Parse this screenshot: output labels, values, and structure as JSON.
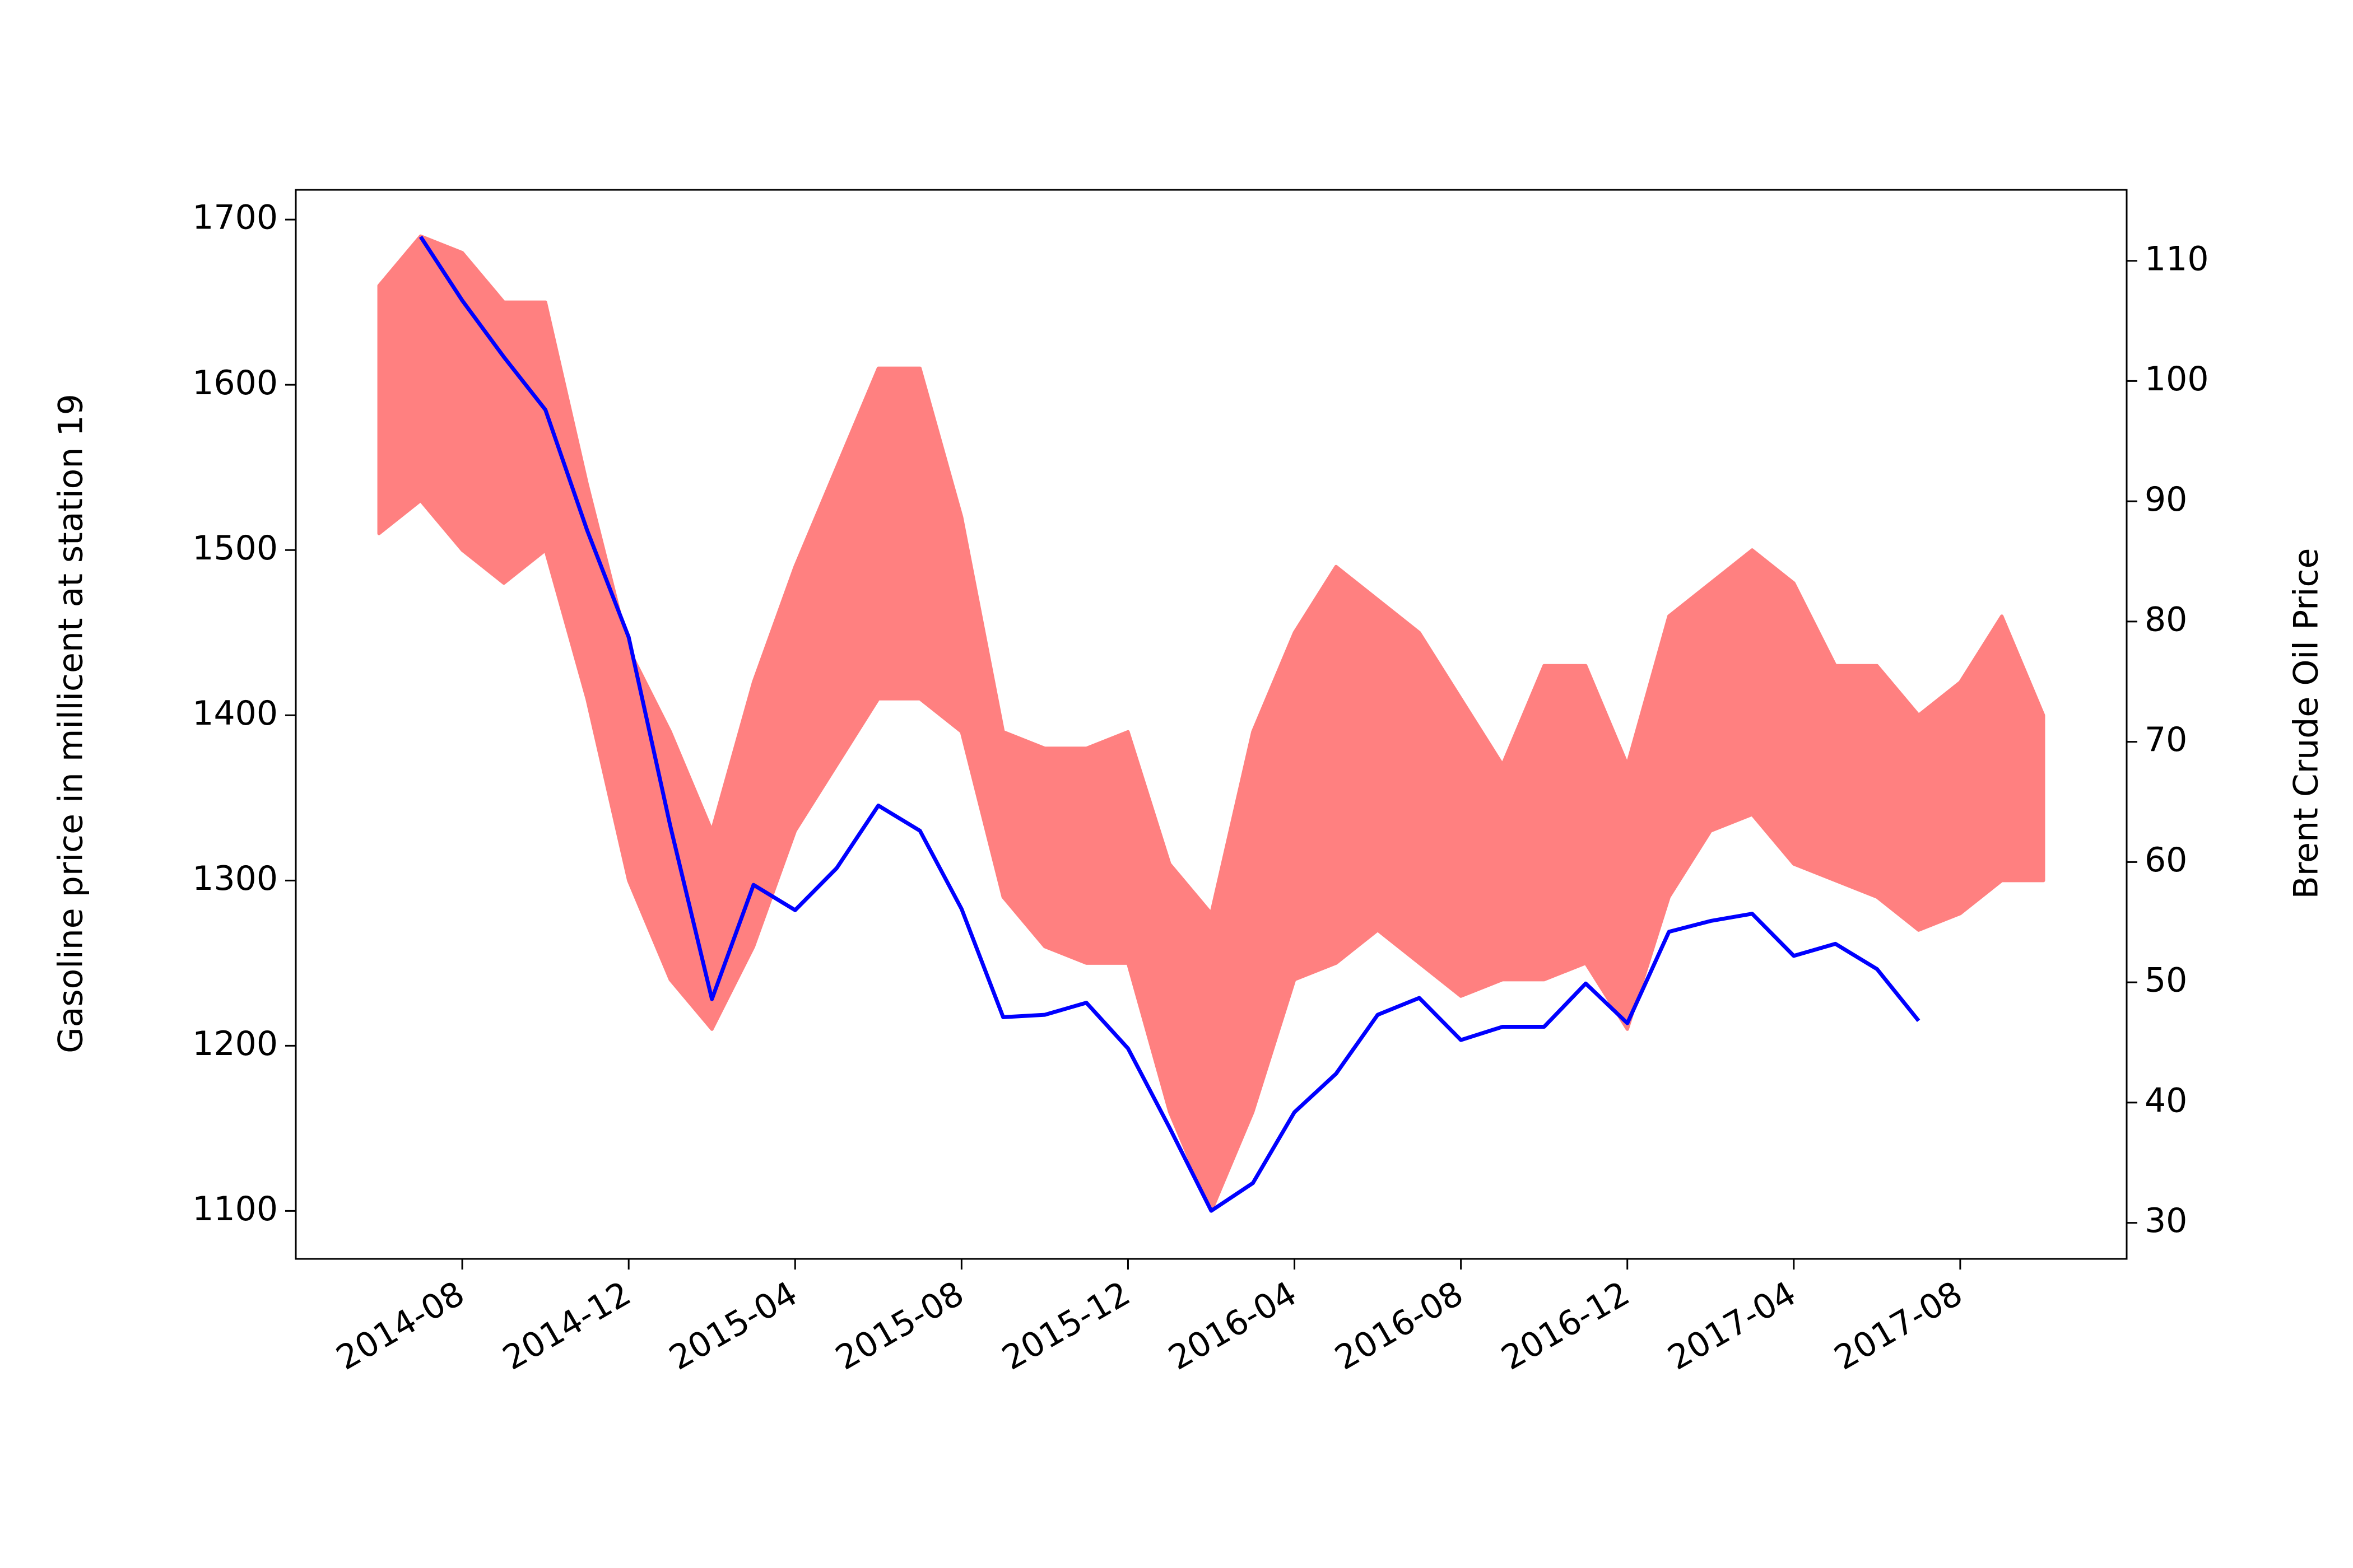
{
  "chart_data": {
    "type": "line",
    "ylabel": "Gasoline price in millicent at station 19",
    "y2label": "Brent Crude Oil Price",
    "xlim": [
      "2014-04",
      "2017-12"
    ],
    "xticks": [
      "2014-08",
      "2014-12",
      "2015-04",
      "2015-08",
      "2015-12",
      "2016-04",
      "2016-08",
      "2016-12",
      "2017-04",
      "2017-08"
    ],
    "ylim": [
      1071,
      1718
    ],
    "yticks": [
      1100,
      1200,
      1300,
      1400,
      1500,
      1600,
      1700
    ],
    "y2lim": [
      27,
      115.9
    ],
    "y2ticks": [
      30,
      40,
      50,
      60,
      70,
      80,
      90,
      100,
      110
    ],
    "series": [
      {
        "color": "#ff8080",
        "style": "range",
        "x": [
          "2014-06",
          "2014-07",
          "2014-08",
          "2014-09",
          "2014-10",
          "2014-11",
          "2014-12",
          "2015-01",
          "2015-02",
          "2015-03",
          "2015-04",
          "2015-05",
          "2015-06",
          "2015-07",
          "2015-08",
          "2015-09",
          "2015-10",
          "2015-11",
          "2015-12",
          "2016-01",
          "2016-02",
          "2016-03",
          "2016-04",
          "2016-05",
          "2016-06",
          "2016-07",
          "2016-08",
          "2016-09",
          "2016-10",
          "2016-11",
          "2016-12",
          "2017-01",
          "2017-02",
          "2017-03",
          "2017-04",
          "2017-05",
          "2017-06",
          "2017-07",
          "2017-08",
          "2017-09",
          "2017-10"
        ],
        "high": [
          1660,
          1690,
          1680,
          1650,
          1650,
          1540,
          1440,
          1390,
          1330,
          1420,
          1490,
          1550,
          1610,
          1610,
          1520,
          1390,
          1380,
          1380,
          1390,
          1310,
          1280,
          1390,
          1450,
          1490,
          1470,
          1450,
          1410,
          1370,
          1430,
          1430,
          1370,
          1460,
          1480,
          1500,
          1480,
          1430,
          1430,
          1400,
          1420,
          1460,
          1400
        ],
        "low": [
          1510,
          1530,
          1500,
          1480,
          1500,
          1410,
          1300,
          1240,
          1210,
          1260,
          1330,
          1370,
          1410,
          1410,
          1390,
          1290,
          1260,
          1250,
          1250,
          1160,
          1100,
          1160,
          1240,
          1250,
          1270,
          1250,
          1230,
          1240,
          1240,
          1250,
          1210,
          1290,
          1330,
          1340,
          1310,
          1300,
          1290,
          1270,
          1280,
          1300,
          1300
        ]
      },
      {
        "color": "#0000ff",
        "axis": "y2",
        "x": [
          "2014-07",
          "2014-08",
          "2014-09",
          "2014-10",
          "2014-11",
          "2014-12",
          "2015-01",
          "2015-02",
          "2015-03",
          "2015-04",
          "2015-05",
          "2015-06",
          "2015-07",
          "2015-08",
          "2015-09",
          "2015-10",
          "2015-11",
          "2015-12",
          "2016-01",
          "2016-02",
          "2016-03",
          "2016-04",
          "2016-05",
          "2016-06",
          "2016-07",
          "2016-08",
          "2016-09",
          "2016-10",
          "2016-11",
          "2016-12",
          "2017-01",
          "2017-02",
          "2017-03",
          "2017-04",
          "2017-05",
          "2017-06",
          "2017-07"
        ],
        "values": [
          112.0,
          106.7,
          102.0,
          97.6,
          87.6,
          78.7,
          63.0,
          48.6,
          58.1,
          56.0,
          59.5,
          64.7,
          62.6,
          56.1,
          47.1,
          47.3,
          48.3,
          44.5,
          37.9,
          31.0,
          33.3,
          39.2,
          42.4,
          47.3,
          48.7,
          45.2,
          46.3,
          46.3,
          49.9,
          46.6,
          54.2,
          55.1,
          55.7,
          52.2,
          53.2,
          51.1,
          46.8
        ]
      }
    ]
  }
}
